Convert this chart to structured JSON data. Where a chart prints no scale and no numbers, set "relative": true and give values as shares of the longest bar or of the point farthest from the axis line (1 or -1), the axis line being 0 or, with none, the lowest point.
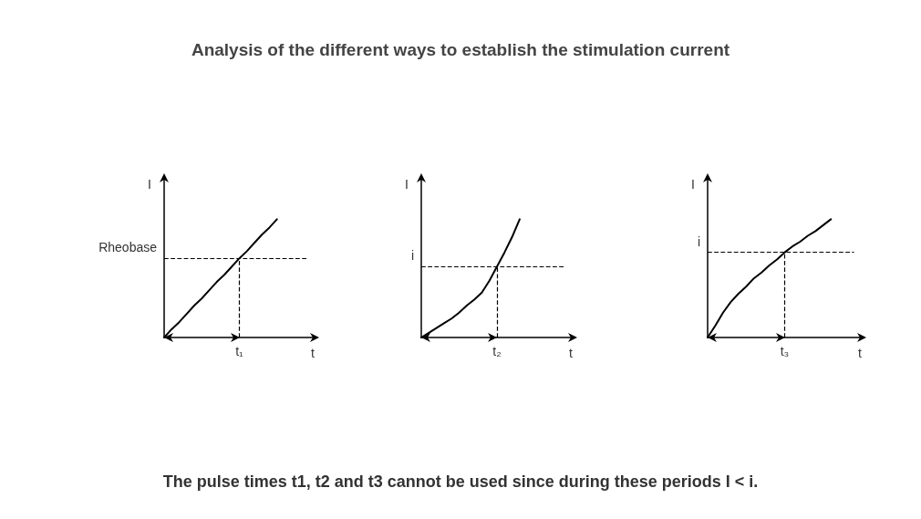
{
  "chart_data": [
    {
      "type": "line",
      "title": "Analysis of the different ways to establish the stimulation current",
      "relative": true,
      "xlabel": "t",
      "ylabel": "I",
      "grid": false,
      "categories": [
        null,
        null,
        null,
        null,
        null,
        null,
        null,
        null,
        null,
        null,
        null,
        null,
        null,
        null,
        null,
        null,
        null,
        null,
        null,
        null,
        null
      ],
      "series": [
        {
          "color": "#000000",
          "values": [
            0,
            0.07,
            0.13,
            0.2,
            0.27,
            0.33,
            0.4,
            0.47,
            0.53,
            0.6,
            0.67,
            0.73,
            0.8,
            0.87,
            0.93,
            1,
            null,
            null,
            null,
            null,
            null
          ]
        }
      ],
      "ref_lines": [
        {
          "axis": "y",
          "value": 0.67,
          "label": "Rheobase",
          "line_style": "dashed",
          "color": "#000000"
        },
        {
          "axis": "x",
          "label": "t₁",
          "line_style": "dashed",
          "color": "#000000"
        }
      ]
    },
    {
      "type": "line",
      "relative": true,
      "xlabel": "t",
      "ylabel": "I",
      "grid": false,
      "categories": [
        null,
        null,
        null,
        null,
        null,
        null,
        null,
        null,
        null,
        null,
        null,
        null,
        null,
        null,
        null,
        null,
        null,
        null,
        null,
        null,
        null
      ],
      "series": [
        {
          "color": "#000000",
          "values": [
            0,
            0.04,
            0.08,
            0.12,
            0.16,
            0.21,
            0.27,
            0.32,
            0.38,
            0.48,
            0.6,
            0.72,
            0.85,
            1,
            null,
            null,
            null,
            null,
            null,
            null,
            null
          ]
        }
      ],
      "ref_lines": [
        {
          "axis": "y",
          "value": 0.6,
          "label": "i",
          "line_style": "dashed",
          "color": "#000000"
        },
        {
          "axis": "x",
          "label": "t₂",
          "line_style": "dashed",
          "color": "#000000"
        }
      ]
    },
    {
      "type": "line",
      "relative": true,
      "xlabel": "t",
      "ylabel": "I",
      "grid": false,
      "categories": [
        null,
        null,
        null,
        null,
        null,
        null,
        null,
        null,
        null,
        null,
        null,
        null,
        null,
        null,
        null,
        null,
        null,
        null,
        null,
        null,
        null
      ],
      "series": [
        {
          "color": "#000000",
          "values": [
            0,
            0.1,
            0.21,
            0.3,
            0.37,
            0.43,
            0.5,
            0.55,
            0.61,
            0.66,
            0.72,
            0.77,
            0.81,
            0.86,
            0.9,
            0.95,
            1,
            null,
            null,
            null,
            null
          ]
        }
      ],
      "ref_lines": [
        {
          "axis": "y",
          "value": 0.72,
          "label": "i",
          "line_style": "dashed",
          "color": "#000000"
        },
        {
          "axis": "x",
          "label": "t₃",
          "line_style": "dashed",
          "color": "#000000"
        }
      ],
      "annotations": [
        "The pulse times t1, t2 and t3 cannot be used since during these periods I < i."
      ]
    }
  ]
}
